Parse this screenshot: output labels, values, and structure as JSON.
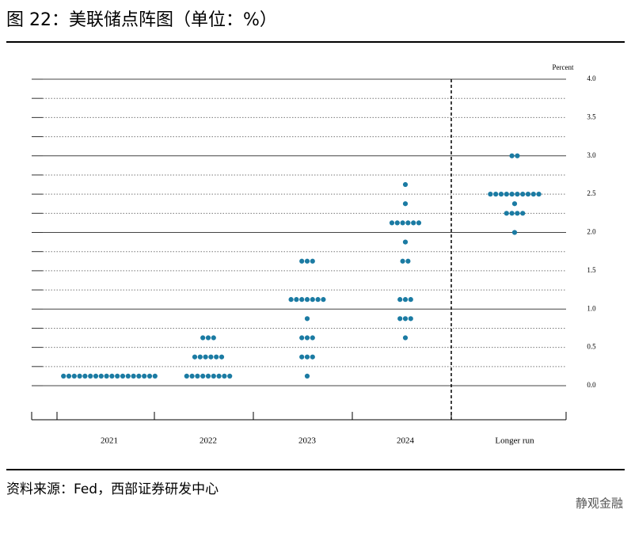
{
  "header": {
    "title": "图 22：美联储点阵图（单位：%）"
  },
  "chart_data": {
    "type": "dot",
    "y_label": "Percent",
    "color": "#1b7ba3",
    "categories": [
      "2021",
      "2022",
      "2023",
      "2024",
      "Longer run"
    ],
    "values": [
      [
        0.125,
        0.125,
        0.125,
        0.125,
        0.125,
        0.125,
        0.125,
        0.125,
        0.125,
        0.125,
        0.125,
        0.125,
        0.125,
        0.125,
        0.125,
        0.125,
        0.125,
        0.125
      ],
      [
        0.125,
        0.125,
        0.125,
        0.125,
        0.125,
        0.125,
        0.125,
        0.125,
        0.125,
        0.375,
        0.375,
        0.375,
        0.375,
        0.375,
        0.375,
        0.625,
        0.625,
        0.625
      ],
      [
        0.125,
        0.375,
        0.375,
        0.375,
        0.625,
        0.625,
        0.625,
        0.875,
        1.125,
        1.125,
        1.125,
        1.125,
        1.125,
        1.125,
        1.125,
        1.625,
        1.625,
        1.625
      ],
      [
        0.625,
        0.875,
        0.875,
        0.875,
        1.125,
        1.125,
        1.125,
        1.625,
        1.625,
        1.875,
        2.125,
        2.125,
        2.125,
        2.125,
        2.125,
        2.125,
        2.375,
        2.625
      ],
      [
        2,
        2.25,
        2.25,
        2.25,
        2.25,
        2.375,
        2.5,
        2.5,
        2.5,
        2.5,
        2.5,
        2.5,
        2.5,
        2.5,
        2.5,
        2.5,
        3,
        3
      ]
    ],
    "ylim": [
      -0.25,
      4
    ],
    "yticks": [
      {
        "value": 0,
        "label": "0.0"
      },
      {
        "value": 0.5,
        "label": "0.5"
      },
      {
        "value": 1,
        "label": "1.0"
      },
      {
        "value": 1.5,
        "label": "1.5"
      },
      {
        "value": 2,
        "label": "2.0"
      },
      {
        "value": 2.5,
        "label": "2.5"
      },
      {
        "value": 3,
        "label": "3.0"
      },
      {
        "value": 3.5,
        "label": "3.5"
      },
      {
        "value": 4,
        "label": "4.0"
      }
    ],
    "minor_yticks": [
      0.25,
      0.75,
      1.25,
      1.75,
      2.25,
      2.75,
      3.25,
      3.75
    ],
    "grid": true
  },
  "footer": {
    "source": "资料来源：Fed，西部证券研发中心",
    "watermark": "静观金融"
  }
}
